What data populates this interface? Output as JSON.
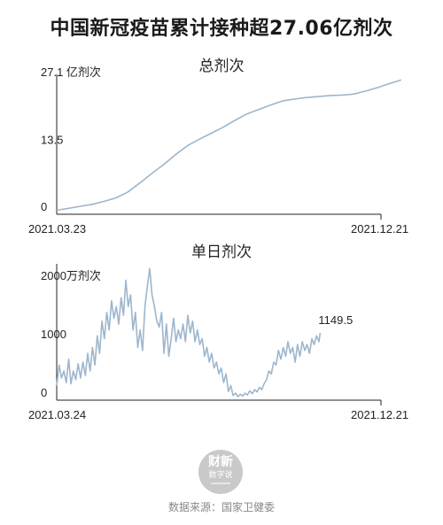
{
  "title": "中国新冠疫苗累计接种超27.06亿剂次",
  "source_text": "数据来源：国家卫健委",
  "logo": {
    "line1": "财新",
    "line2": "数字说"
  },
  "colors": {
    "line": "#9db6cc",
    "axis": "#222222"
  },
  "chart_data": [
    {
      "type": "line",
      "title": "总剂次",
      "y_unit": "亿剂次",
      "y_ticks": [
        {
          "value": 27.1,
          "label": "27.1 亿剂次"
        },
        {
          "value": 13.5,
          "label": "13.5"
        },
        {
          "value": 0,
          "label": "0"
        }
      ],
      "x_labels": [
        "2021.03.23",
        "2021.12.21"
      ],
      "x_range": [
        "2021-03-23",
        "2021-12-21"
      ],
      "ylim": [
        0,
        27.1
      ],
      "series": [
        {
          "values": [
            [
              0,
              0.8
            ],
            [
              10,
              1.2
            ],
            [
              20,
              1.6
            ],
            [
              30,
              2.0
            ],
            [
              40,
              2.6
            ],
            [
              50,
              3.3
            ],
            [
              60,
              4.5
            ],
            [
              70,
              6.3
            ],
            [
              80,
              8.2
            ],
            [
              90,
              10.0
            ],
            [
              100,
              12.0
            ],
            [
              110,
              13.8
            ],
            [
              120,
              15.1
            ],
            [
              130,
              16.3
            ],
            [
              140,
              17.5
            ],
            [
              150,
              18.9
            ],
            [
              160,
              20.2
            ],
            [
              170,
              21.1
            ],
            [
              180,
              22.0
            ],
            [
              190,
              22.8
            ],
            [
              200,
              23.2
            ],
            [
              210,
              23.5
            ],
            [
              220,
              23.7
            ],
            [
              230,
              23.9
            ],
            [
              240,
              24.0
            ],
            [
              250,
              24.2
            ],
            [
              260,
              24.8
            ],
            [
              270,
              25.5
            ],
            [
              280,
              26.3
            ],
            [
              290,
              27.06
            ]
          ]
        }
      ]
    },
    {
      "type": "line",
      "title": "单日剂次",
      "y_unit": "万剂次",
      "y_ticks": [
        {
          "value": 2000,
          "label": "2000万剂次"
        },
        {
          "value": 1000,
          "label": "1000"
        },
        {
          "value": 0,
          "label": "0"
        }
      ],
      "x_labels": [
        "2021.03.24",
        "2021.12.21"
      ],
      "x_range": [
        "2021-03-24",
        "2021-12-21"
      ],
      "ylim": [
        0,
        2300
      ],
      "end_label": "1149.5",
      "series": [
        {
          "values": [
            [
              0,
              250
            ],
            [
              2,
              600
            ],
            [
              4,
              380
            ],
            [
              6,
              500
            ],
            [
              8,
              300
            ],
            [
              10,
              700
            ],
            [
              12,
              280
            ],
            [
              14,
              500
            ],
            [
              16,
              350
            ],
            [
              18,
              620
            ],
            [
              20,
              380
            ],
            [
              22,
              650
            ],
            [
              24,
              420
            ],
            [
              26,
              800
            ],
            [
              28,
              500
            ],
            [
              30,
              900
            ],
            [
              32,
              600
            ],
            [
              34,
              1100
            ],
            [
              36,
              800
            ],
            [
              38,
              1350
            ],
            [
              40,
              1050
            ],
            [
              42,
              1500
            ],
            [
              44,
              1200
            ],
            [
              46,
              1700
            ],
            [
              48,
              1400
            ],
            [
              50,
              1600
            ],
            [
              52,
              1300
            ],
            [
              54,
              1750
            ],
            [
              56,
              1450
            ],
            [
              58,
              2050
            ],
            [
              60,
              1600
            ],
            [
              62,
              1800
            ],
            [
              64,
              1200
            ],
            [
              66,
              1500
            ],
            [
              68,
              900
            ],
            [
              70,
              1200
            ],
            [
              72,
              850
            ],
            [
              74,
              1600
            ],
            [
              76,
              1950
            ],
            [
              78,
              2250
            ],
            [
              80,
              1800
            ],
            [
              82,
              1600
            ],
            [
              84,
              1350
            ],
            [
              86,
              1250
            ],
            [
              88,
              1500
            ],
            [
              90,
              800
            ],
            [
              92,
              1300
            ],
            [
              94,
              750
            ],
            [
              96,
              1050
            ],
            [
              98,
              1400
            ],
            [
              100,
              1000
            ],
            [
              102,
              1200
            ],
            [
              104,
              1050
            ],
            [
              106,
              1300
            ],
            [
              108,
              1000
            ],
            [
              110,
              1450
            ],
            [
              112,
              1150
            ],
            [
              114,
              1350
            ],
            [
              116,
              1000
            ],
            [
              118,
              1200
            ],
            [
              120,
              950
            ],
            [
              122,
              1050
            ],
            [
              124,
              750
            ],
            [
              126,
              900
            ],
            [
              128,
              650
            ],
            [
              130,
              800
            ],
            [
              132,
              550
            ],
            [
              134,
              650
            ],
            [
              136,
              450
            ],
            [
              138,
              550
            ],
            [
              140,
              300
            ],
            [
              142,
              450
            ],
            [
              144,
              150
            ],
            [
              146,
              250
            ],
            [
              148,
              80
            ],
            [
              150,
              120
            ],
            [
              152,
              60
            ],
            [
              154,
              100
            ],
            [
              156,
              70
            ],
            [
              158,
              120
            ],
            [
              160,
              90
            ],
            [
              162,
              160
            ],
            [
              164,
              110
            ],
            [
              166,
              180
            ],
            [
              168,
              140
            ],
            [
              170,
              220
            ],
            [
              172,
              180
            ],
            [
              174,
              280
            ],
            [
              176,
              350
            ],
            [
              178,
              500
            ],
            [
              180,
              450
            ],
            [
              182,
              650
            ],
            [
              184,
              600
            ],
            [
              186,
              850
            ],
            [
              188,
              700
            ],
            [
              190,
              900
            ],
            [
              192,
              750
            ],
            [
              194,
              1000
            ],
            [
              196,
              800
            ],
            [
              198,
              900
            ],
            [
              200,
              650
            ],
            [
              202,
              950
            ],
            [
              204,
              750
            ],
            [
              206,
              1000
            ],
            [
              208,
              850
            ],
            [
              210,
              950
            ],
            [
              212,
              800
            ],
            [
              214,
              1050
            ],
            [
              216,
              950
            ],
            [
              218,
              1100
            ],
            [
              220,
              1000
            ],
            [
              221,
              1149.5
            ]
          ]
        }
      ]
    }
  ]
}
